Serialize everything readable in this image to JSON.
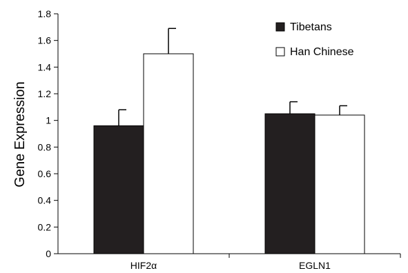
{
  "chart_data": {
    "type": "bar",
    "title": "",
    "xlabel": "",
    "ylabel": "Gene Expression",
    "ylim": [
      0,
      1.8
    ],
    "yticks": [
      "0",
      "0.2",
      "0.4",
      "0.6",
      "0.8",
      "1",
      "1.2",
      "1.4",
      "1.6",
      "1.8"
    ],
    "grid": false,
    "legend_position": "top-right",
    "categories": [
      "HIF2α",
      "EGLN1"
    ],
    "series": [
      {
        "name": "Tibetans",
        "color": "#231f20",
        "values": [
          0.96,
          1.05
        ],
        "errors": [
          0.12,
          0.09
        ]
      },
      {
        "name": "Han Chinese",
        "color": "#ffffff",
        "values": [
          1.5,
          1.04
        ],
        "errors": [
          0.19,
          0.07
        ]
      }
    ]
  }
}
